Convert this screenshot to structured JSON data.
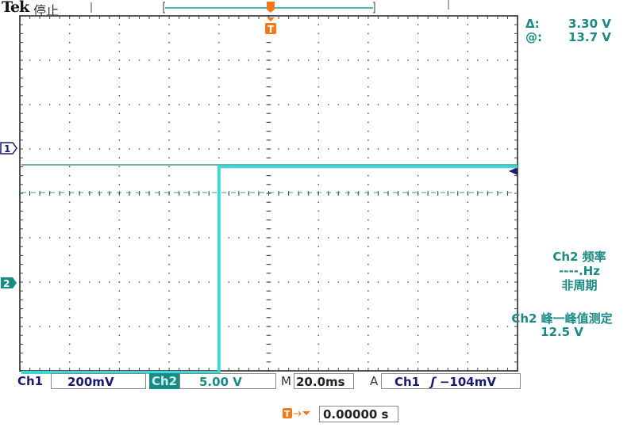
{
  "header": {
    "brand": "Tek",
    "acq_state": "停止"
  },
  "cursor_readout": {
    "delta_label": "Δ:",
    "delta_value": "3.30 V",
    "at_label": "@:",
    "at_value": "13.7 V"
  },
  "measurements": [
    {
      "title": "Ch2 频率",
      "value": "----.Hz",
      "note": "非周期"
    },
    {
      "title": "Ch2 峰一峰值测定",
      "value": "12.5 V"
    }
  ],
  "markers": {
    "ch1": "1",
    "ch2": "2",
    "trigger": "T"
  },
  "status_bar": {
    "ch1_label": "Ch1",
    "ch1_scale": "200mV",
    "ch2_label": "Ch2",
    "ch2_scale": "5.00 V",
    "time_label": "M",
    "time_scale": "20.0ms",
    "trig_label": "A",
    "trig_source": "Ch1",
    "trig_slope": "ʃ",
    "trig_level": "−104mV"
  },
  "trigger_position": {
    "value": "0.00000 s"
  },
  "colors": {
    "ch1": "#1a1a6e",
    "ch2": "#3fd6d6",
    "trigger": "#f07a1a",
    "text": "#1a8a84"
  },
  "waveform_ch2": {
    "low_div": -2.0,
    "high_div": 0.3,
    "step_time_div": -1.0
  }
}
